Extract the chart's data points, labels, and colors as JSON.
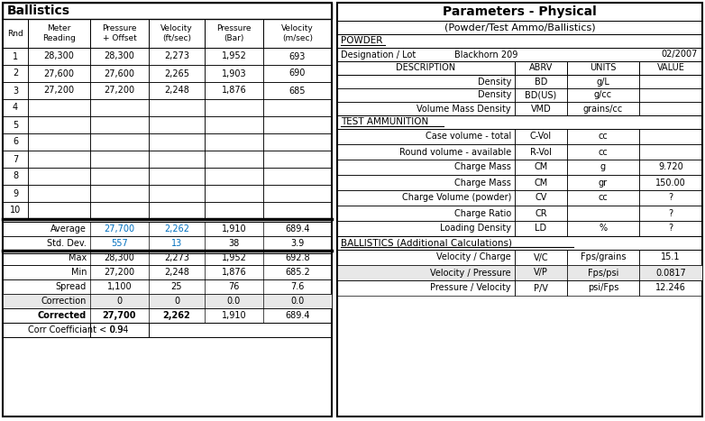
{
  "fig_width": 7.82,
  "fig_height": 4.67,
  "dpi": 100,
  "bg_color": "#ffffff",
  "blue_color": "#0070C0",
  "light_gray": "#E8E8E8",
  "rounds": [
    [
      "1",
      "28,300",
      "28,300",
      "2,273",
      "1,952",
      "693"
    ],
    [
      "2",
      "27,600",
      "27,600",
      "2,265",
      "1,903",
      "690"
    ],
    [
      "3",
      "27,200",
      "27,200",
      "2,248",
      "1,876",
      "685"
    ],
    [
      "4",
      "",
      "",
      "",
      "",
      ""
    ],
    [
      "5",
      "",
      "",
      "",
      "",
      ""
    ],
    [
      "6",
      "",
      "",
      "",
      "",
      ""
    ],
    [
      "7",
      "",
      "",
      "",
      "",
      ""
    ],
    [
      "8",
      "",
      "",
      "",
      "",
      ""
    ],
    [
      "9",
      "",
      "",
      "",
      "",
      ""
    ],
    [
      "10",
      "",
      "",
      "",
      "",
      ""
    ]
  ],
  "stats_order": [
    "Average",
    "Std. Dev.",
    "Max",
    "Min",
    "Spread",
    "Correction",
    "Corrected"
  ],
  "stats": {
    "Average": [
      "27,700",
      "2,262",
      "1,910",
      "689.4"
    ],
    "Std. Dev.": [
      "557",
      "13",
      "38",
      "3.9"
    ],
    "Max": [
      "28,300",
      "2,273",
      "1,952",
      "692.8"
    ],
    "Min": [
      "27,200",
      "2,248",
      "1,876",
      "685.2"
    ],
    "Spread": [
      "1,100",
      "25",
      "76",
      "7.6"
    ],
    "Correction": [
      "0",
      "0",
      "0.0",
      "0.0"
    ],
    "Corrected": [
      "27,700",
      "2,262",
      "1,910",
      "689.4"
    ]
  },
  "corr_coeff": "0.94",
  "powder_rows": [
    [
      "Density",
      "BD",
      "g/L",
      ""
    ],
    [
      "Density",
      "BD(US)",
      "g/cc",
      ""
    ],
    [
      "Volume Mass Density",
      "VMD",
      "grains/cc",
      ""
    ]
  ],
  "ammo_rows": [
    [
      "Case volume - total",
      "C-Vol",
      "cc",
      ""
    ],
    [
      "Round volume - available",
      "R-Vol",
      "cc",
      ""
    ],
    [
      "Charge Mass",
      "CM",
      "g",
      "9.720"
    ],
    [
      "Charge Mass",
      "CM",
      "gr",
      "150.00"
    ],
    [
      "Charge Volume (powder)",
      "CV",
      "cc",
      "?"
    ],
    [
      "Charge Ratio",
      "CR",
      "",
      "?"
    ],
    [
      "Loading Density",
      "LD",
      "%",
      "?"
    ]
  ],
  "bal_rows": [
    [
      "Velocity / Charge",
      "V/C",
      "Fps/grains",
      "15.1"
    ],
    [
      "Velocity / Pressure",
      "V/P",
      "Fps/psi",
      "0.0817"
    ],
    [
      "Pressure / Velocity",
      "P/V",
      "psi/Fps",
      "12.246"
    ]
  ]
}
